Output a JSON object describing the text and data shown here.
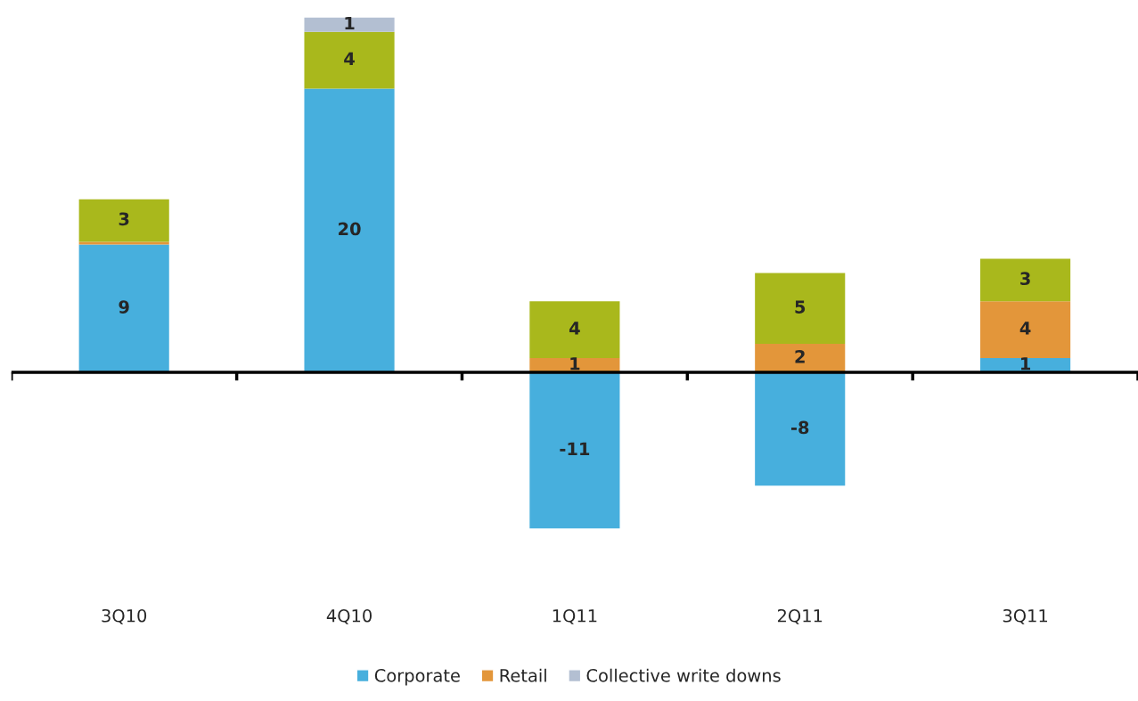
{
  "chart_data": {
    "type": "bar",
    "stacked": true,
    "data_labels": true,
    "legend": "bottom",
    "grid": false,
    "categories": [
      "3Q10",
      "4Q10",
      "1Q11",
      "2Q11",
      "3Q11"
    ],
    "series": [
      {
        "name": "Corporate",
        "color": "#47afdd",
        "values": [
          9,
          20,
          -11,
          -8,
          1
        ]
      },
      {
        "name": "Retail",
        "color": "#e3963a",
        "values": [
          0.2,
          null,
          1,
          2,
          4
        ],
        "value_labels": [
          null,
          null,
          "1",
          "2",
          "4"
        ]
      },
      {
        "color": "#a9b81c",
        "values": [
          3,
          4,
          4,
          5,
          3
        ]
      },
      {
        "name": "Collective write downs",
        "color": "#b3bfd2",
        "values": [
          null,
          1,
          null,
          null,
          null
        ]
      }
    ]
  }
}
